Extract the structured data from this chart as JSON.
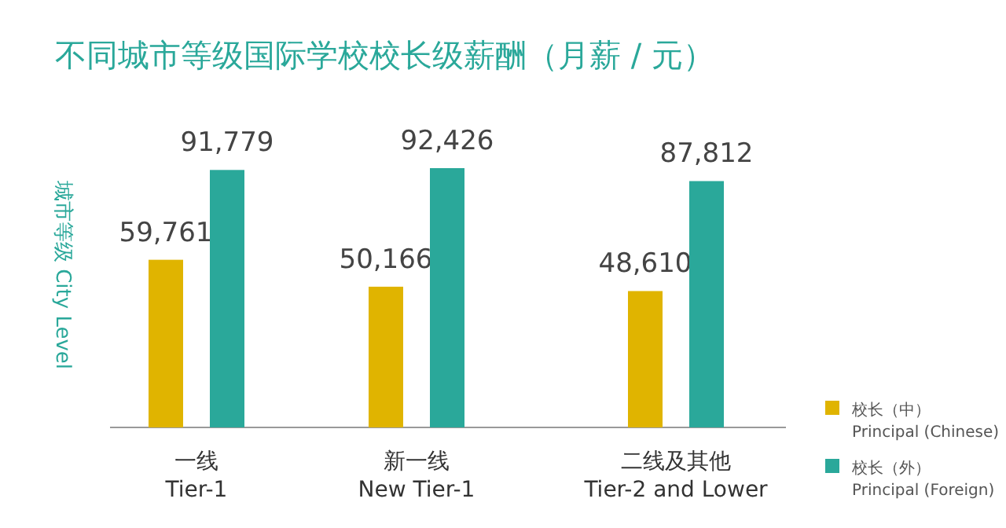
{
  "chart_data": {
    "type": "bar",
    "title": "不同城市等级国际学校校长级薪酬（月薪 / 元）",
    "ylabel": "城市等级  City Level",
    "categories": [
      "一线\nTier-1",
      "新一线\nNew Tier-1",
      "二线及其他\nTier-2 and Lower"
    ],
    "series": [
      {
        "name": "校长（中）\nPrincipal (Chinese)",
        "color": "#e0b400",
        "values": [
          59761,
          50166,
          48610
        ],
        "value_labels": [
          "59,761",
          "50,166",
          "48,610"
        ]
      },
      {
        "name": "校长（外）\nPrincipal (Foreign)",
        "color": "#2aa89a",
        "values": [
          91779,
          92426,
          87812
        ],
        "value_labels": [
          "91,779",
          "92,426",
          "87,812"
        ]
      }
    ],
    "legend": "bottom right"
  }
}
